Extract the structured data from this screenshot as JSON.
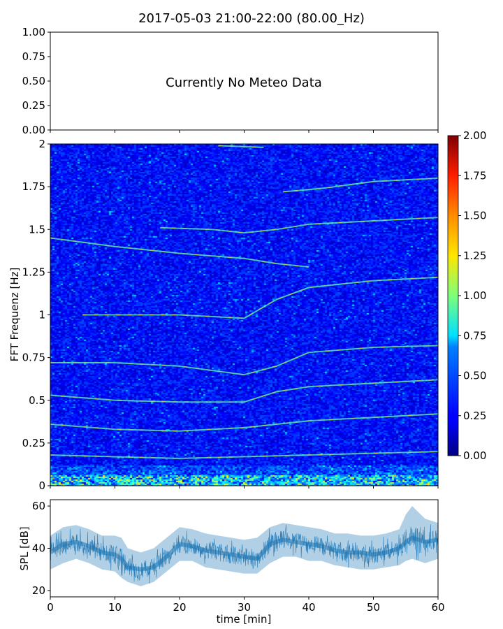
{
  "figure": {
    "title": "2017-05-03 21:00-22:00 (80.00_Hz)"
  },
  "chart_data": [
    {
      "type": "line",
      "panel": "meteo",
      "xlim": [
        0,
        60
      ],
      "ylim": [
        0,
        1
      ],
      "ytick_labels": [
        "0.00",
        "0.25",
        "0.50",
        "0.75",
        "1.00"
      ],
      "message": "Currently No Meteo Data",
      "series": []
    },
    {
      "type": "heatmap",
      "panel": "spectrogram",
      "ylabel": "FFT Frequenz [Hz]",
      "xlim": [
        0,
        60
      ],
      "ylim": [
        0,
        2
      ],
      "ytick_values": [
        0,
        0.25,
        0.5,
        0.75,
        1,
        1.25,
        1.5,
        1.75,
        2
      ],
      "ytick_labels": [
        "0",
        "0.25",
        "0.5",
        "0.75",
        "1",
        "1.25",
        "1.5",
        "1.75",
        "2"
      ],
      "colormap": "jet",
      "color_range": [
        0,
        2
      ],
      "colorbar_ticks": [
        "0.00",
        "0.25",
        "0.50",
        "0.75",
        "1.00",
        "1.25",
        "1.50",
        "1.75",
        "2.00"
      ],
      "features": [
        {
          "description": "harmonic line",
          "points": [
            [
              0,
              0.36
            ],
            [
              10,
              0.33
            ],
            [
              20,
              0.32
            ],
            [
              30,
              0.34
            ],
            [
              40,
              0.38
            ],
            [
              50,
              0.4
            ],
            [
              60,
              0.42
            ]
          ]
        },
        {
          "description": "harmonic line",
          "points": [
            [
              0,
              0.53
            ],
            [
              10,
              0.5
            ],
            [
              20,
              0.49
            ],
            [
              30,
              0.49
            ],
            [
              35,
              0.55
            ],
            [
              40,
              0.58
            ],
            [
              50,
              0.6
            ],
            [
              60,
              0.62
            ]
          ]
        },
        {
          "description": "harmonic line",
          "points": [
            [
              0,
              0.72
            ],
            [
              10,
              0.72
            ],
            [
              20,
              0.7
            ],
            [
              30,
              0.65
            ],
            [
              35,
              0.7
            ],
            [
              40,
              0.78
            ],
            [
              50,
              0.81
            ],
            [
              60,
              0.82
            ]
          ]
        },
        {
          "description": "harmonic line",
          "points": [
            [
              5,
              1.0
            ],
            [
              20,
              1.0
            ],
            [
              30,
              0.98
            ],
            [
              35,
              1.09
            ],
            [
              40,
              1.16
            ],
            [
              50,
              1.2
            ],
            [
              60,
              1.22
            ]
          ]
        },
        {
          "description": "harmonic line",
          "points": [
            [
              17,
              1.51
            ],
            [
              25,
              1.5
            ],
            [
              30,
              1.48
            ],
            [
              35,
              1.5
            ],
            [
              40,
              1.53
            ],
            [
              50,
              1.55
            ],
            [
              60,
              1.57
            ]
          ]
        },
        {
          "description": "harmonic line",
          "points": [
            [
              0,
              1.45
            ],
            [
              10,
              1.4
            ],
            [
              20,
              1.36
            ],
            [
              30,
              1.33
            ],
            [
              35,
              1.3
            ],
            [
              40,
              1.28
            ]
          ]
        },
        {
          "description": "harmonic line",
          "points": [
            [
              36,
              1.72
            ],
            [
              42,
              1.74
            ],
            [
              50,
              1.78
            ],
            [
              60,
              1.8
            ]
          ]
        },
        {
          "description": "harmonic line",
          "points": [
            [
              26,
              1.99
            ],
            [
              33,
              1.98
            ]
          ]
        },
        {
          "description": "harmonic line",
          "points": [
            [
              0,
              0.18
            ],
            [
              20,
              0.16
            ],
            [
              40,
              0.18
            ],
            [
              60,
              0.2
            ]
          ]
        },
        {
          "description": "broadband low-frequency energy",
          "points": [
            [
              0,
              0.03
            ],
            [
              60,
              0.03
            ]
          ]
        }
      ]
    },
    {
      "type": "line",
      "panel": "spl",
      "xlabel": "time [min]",
      "ylabel": "SPL [dB]",
      "xlim": [
        0,
        60
      ],
      "ylim": [
        17,
        63
      ],
      "xtick_labels": [
        "0",
        "10",
        "20",
        "30",
        "40",
        "50",
        "60"
      ],
      "ytick_labels": [
        "20",
        "40",
        "60"
      ],
      "color": "#1f77b4",
      "series": [
        {
          "x": [
            0,
            2,
            4,
            6,
            8,
            10,
            11,
            12,
            14,
            16,
            18,
            20,
            22,
            24,
            26,
            28,
            30,
            32,
            34,
            36,
            38,
            40,
            42,
            44,
            46,
            48,
            50,
            52,
            54,
            55,
            56,
            58,
            60
          ],
          "y": [
            38,
            42,
            43,
            41,
            38,
            37,
            35,
            31,
            30,
            31,
            36,
            42,
            41,
            39,
            38,
            37,
            36,
            35,
            42,
            44,
            43,
            42,
            41,
            39,
            38,
            38,
            37,
            38,
            40,
            43,
            45,
            43,
            44
          ],
          "y_low": [
            30,
            33,
            35,
            33,
            30,
            29,
            26,
            24,
            22,
            24,
            29,
            34,
            34,
            31,
            30,
            29,
            28,
            28,
            33,
            36,
            36,
            34,
            34,
            32,
            31,
            30,
            30,
            31,
            32,
            34,
            35,
            33,
            35
          ],
          "y_high": [
            46,
            50,
            51,
            49,
            46,
            46,
            45,
            40,
            38,
            40,
            45,
            50,
            49,
            47,
            46,
            45,
            44,
            45,
            50,
            52,
            51,
            50,
            49,
            47,
            47,
            46,
            46,
            47,
            49,
            56,
            60,
            54,
            52
          ]
        }
      ]
    }
  ]
}
